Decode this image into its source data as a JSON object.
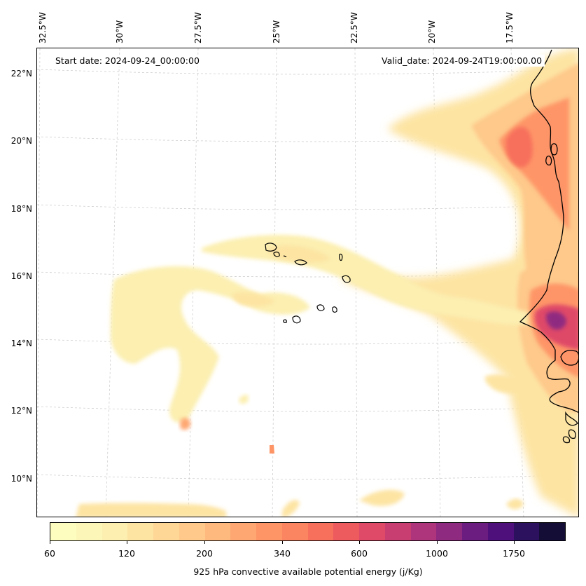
{
  "map": {
    "start_date": "Start date: 2024-09-24_00:00:00",
    "valid_date": "Valid_date: 2024-09-24T19:00:00.00",
    "longitude_labels": [
      "32.5°W",
      "30°W",
      "27.5°W",
      "25°W",
      "22.5°W",
      "20°W",
      "17.5°W"
    ],
    "latitude_labels": [
      "22°N",
      "20°N",
      "18°N",
      "16°N",
      "14°N",
      "12°N",
      "10°N"
    ],
    "gridlines": true,
    "field": "925 hPa convective available potential energy"
  },
  "colorbar": {
    "label": "925 hPa convective available potential energy (j/Kg)",
    "tick_labels": [
      "60",
      "120",
      "200",
      "340",
      "600",
      "1000",
      "1750"
    ],
    "colors": [
      "#fcfdbf",
      "#fcf7b9",
      "#fcefb0",
      "#fde4a3",
      "#fed797",
      "#fec98b",
      "#feb97f",
      "#fea772",
      "#fe9567",
      "#fc8561",
      "#f7705c",
      "#ee5b5e",
      "#df4a68",
      "#c93e71",
      "#ae347b",
      "#8f2a81",
      "#6c1d80",
      "#4e117b",
      "#2b115e",
      "#140e36"
    ]
  },
  "icons": {
    "coastline": "coastline-outline",
    "islands": "cape-verde-islands-outline"
  }
}
